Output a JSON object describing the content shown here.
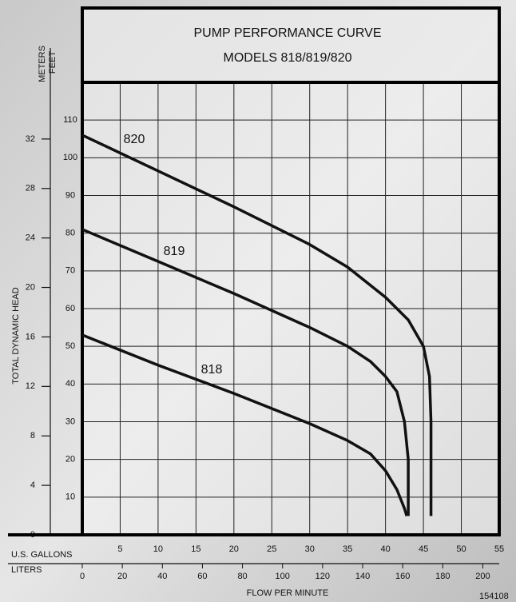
{
  "chart_data": {
    "type": "line",
    "title": "PUMP PERFORMANCE CURVE",
    "subtitle": "MODELS 818/819/820",
    "y_label": "TOTAL DYNAMIC HEAD",
    "y_unit_label": "FEET",
    "y2_unit_label": "METERS",
    "x_label": "FLOW PER MINUTE",
    "x_unit_label": "U.S. GALLONS",
    "x2_unit_label": "LITERS",
    "code": "154108",
    "xlim": [
      0,
      55
    ],
    "xticks": [
      5,
      10,
      15,
      20,
      25,
      30,
      35,
      40,
      45,
      50,
      55
    ],
    "x2lim": [
      0,
      208.2
    ],
    "x2ticks": [
      0,
      20,
      40,
      60,
      80,
      100,
      120,
      140,
      160,
      180,
      200
    ],
    "ylim": [
      0,
      120
    ],
    "yticks": [
      10,
      20,
      30,
      40,
      50,
      60,
      70,
      80,
      90,
      100,
      110
    ],
    "y2lim": [
      0,
      36.58
    ],
    "y2ticks": [
      0,
      4,
      8,
      12,
      16,
      20,
      24,
      28,
      32
    ],
    "grid": true,
    "series": [
      {
        "name": "820",
        "color": "#111111",
        "x": [
          0,
          10,
          20,
          30,
          35,
          40,
          43,
          45,
          45.8,
          46,
          46
        ],
        "values": [
          106,
          96.5,
          87,
          77,
          71,
          63,
          57,
          50,
          42,
          30,
          5
        ]
      },
      {
        "name": "819",
        "color": "#111111",
        "x": [
          0,
          10,
          20,
          30,
          35,
          38,
          40,
          41.5,
          42.5,
          43,
          43
        ],
        "values": [
          81,
          72.5,
          64,
          55,
          50,
          46,
          42,
          38,
          30,
          20,
          5
        ]
      },
      {
        "name": "818",
        "color": "#111111",
        "x": [
          0,
          10,
          20,
          30,
          35,
          38,
          40,
          41.5,
          42.5,
          42.8
        ],
        "values": [
          53,
          45,
          37.5,
          29.5,
          25,
          21.5,
          17,
          12,
          7,
          5
        ]
      }
    ]
  }
}
